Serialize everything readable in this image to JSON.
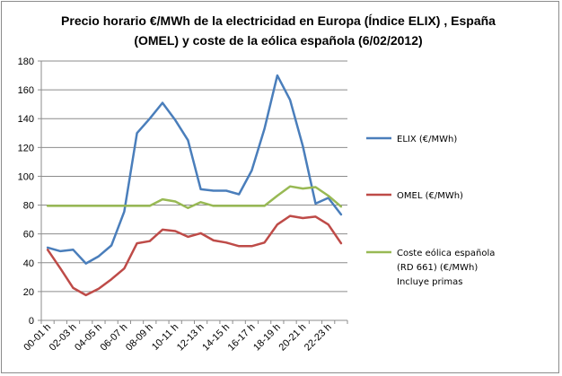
{
  "chart_data": {
    "type": "line",
    "title_line1": "Precio horario €/MWh de la electricidad en Europa (Índice ELIX) , España",
    "title_line2": "(OMEL) y coste de la eólica española (6/02/2012)",
    "xlabel": "",
    "ylabel": "",
    "ylim": [
      0,
      180
    ],
    "yticks": [
      0,
      20,
      40,
      60,
      80,
      100,
      120,
      140,
      160,
      180
    ],
    "grid": "horizontal",
    "legend_position": "right",
    "categories": [
      "00-01 h",
      "01-02 h",
      "02-03 h",
      "03-04 h",
      "04-05 h",
      "05-06 h",
      "06-07 h",
      "07-08 h",
      "08-09 h",
      "09-10 h",
      "10-11 h",
      "11-12 h",
      "12-13 h",
      "13-14 h",
      "14-15 h",
      "15-16 h",
      "16-17 h",
      "17-18 h",
      "18-19 h",
      "19-20 h",
      "20-21 h",
      "21-22 h",
      "22-23 h",
      "23-24 h"
    ],
    "visible_tick_labels": [
      "00-01 h",
      "02-03 h",
      "04-05 h",
      "06-07 h",
      "08-09 h",
      "10-11 h",
      "12-13 h",
      "14-15 h",
      "16-17 h",
      "18-19 h",
      "20-21 h",
      "22-23 h"
    ],
    "series": [
      {
        "name": "ELIX (€/MWh)",
        "color": "#4a7ebb",
        "values": [
          50.5,
          48,
          49,
          39.5,
          44.5,
          52,
          75.5,
          130,
          140,
          151,
          139,
          125,
          91,
          90,
          90,
          87.5,
          104,
          133,
          170,
          153,
          121,
          81,
          85,
          73.5
        ]
      },
      {
        "name": "OMEL (€/MWh)",
        "color": "#be4b48",
        "values": [
          49,
          36,
          22.5,
          17.5,
          22,
          28.5,
          36,
          53.5,
          55,
          63,
          62,
          58,
          60.5,
          55.5,
          54,
          51.5,
          51.5,
          54,
          66.5,
          72.5,
          71,
          72,
          66.5,
          53.5
        ]
      },
      {
        "name": "Coste eólica española (RD 661) (€/MWh) Incluye primas",
        "legend_lines": [
          "Coste eólica española",
          "(RD 661) (€/MWh)",
          "Incluye primas"
        ],
        "color": "#98b954",
        "values": [
          79.5,
          79.5,
          79.5,
          79.5,
          79.5,
          79.5,
          79.5,
          79.5,
          79.5,
          84,
          82.5,
          78,
          82,
          79.5,
          79.5,
          79.5,
          79.5,
          79.5,
          86.5,
          93,
          91.5,
          92.5,
          86.5,
          79
        ]
      }
    ]
  }
}
